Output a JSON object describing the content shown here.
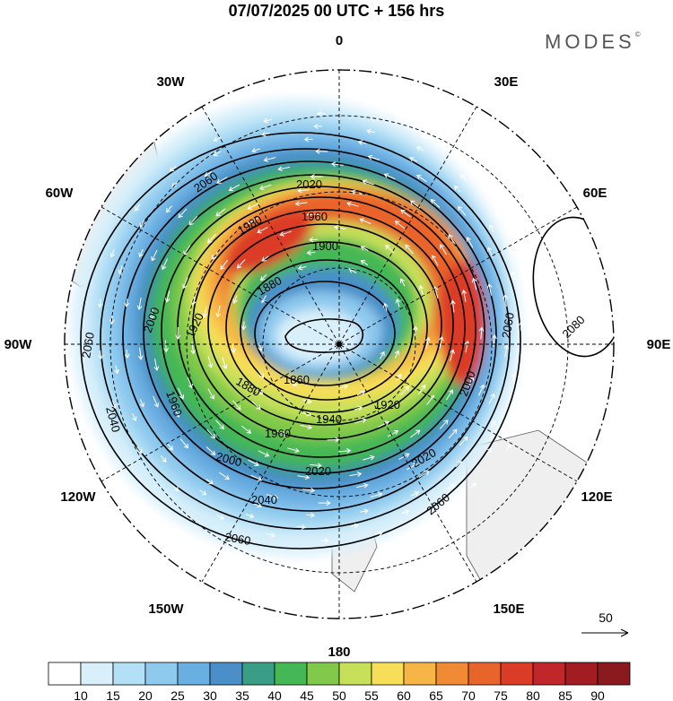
{
  "title": "07/07/2025  00 UTC  + 156 hrs",
  "brand": "MODES",
  "brand_mark": "©",
  "longitude_labels": {
    "top": "0",
    "right": "90E",
    "bottom": "180",
    "left": "90W",
    "tr1": "30E",
    "tr2": "60E",
    "br1": "120E",
    "br2": "150E",
    "bl1": "150W",
    "bl2": "120W",
    "tl1": "60W",
    "tl2": "30W"
  },
  "contour_labels": [
    "2060",
    "2020",
    "1960",
    "1980",
    "1900",
    "1880",
    "1920",
    "2000",
    "1940",
    "1860",
    "1880",
    "2040",
    "2060",
    "2080",
    "2020",
    "2000",
    "2040",
    "2060",
    "2020",
    "1960",
    "1980",
    "1920"
  ],
  "vector_reference": "50",
  "colorbar": {
    "labels": [
      "10",
      "15",
      "20",
      "25",
      "30",
      "35",
      "40",
      "45",
      "50",
      "55",
      "60",
      "65",
      "70",
      "75",
      "80",
      "85",
      "90"
    ],
    "colors": [
      "#ffffff",
      "#d9f0fb",
      "#b3e0f5",
      "#8ec9ee",
      "#6aafe2",
      "#4a8fc8",
      "#3a9e86",
      "#45b855",
      "#80c94a",
      "#c6e05a",
      "#f7de58",
      "#f7b545",
      "#f08a35",
      "#e9642b",
      "#dc3b26",
      "#c0262a",
      "#a11d22",
      "#8a1a1e"
    ]
  }
}
